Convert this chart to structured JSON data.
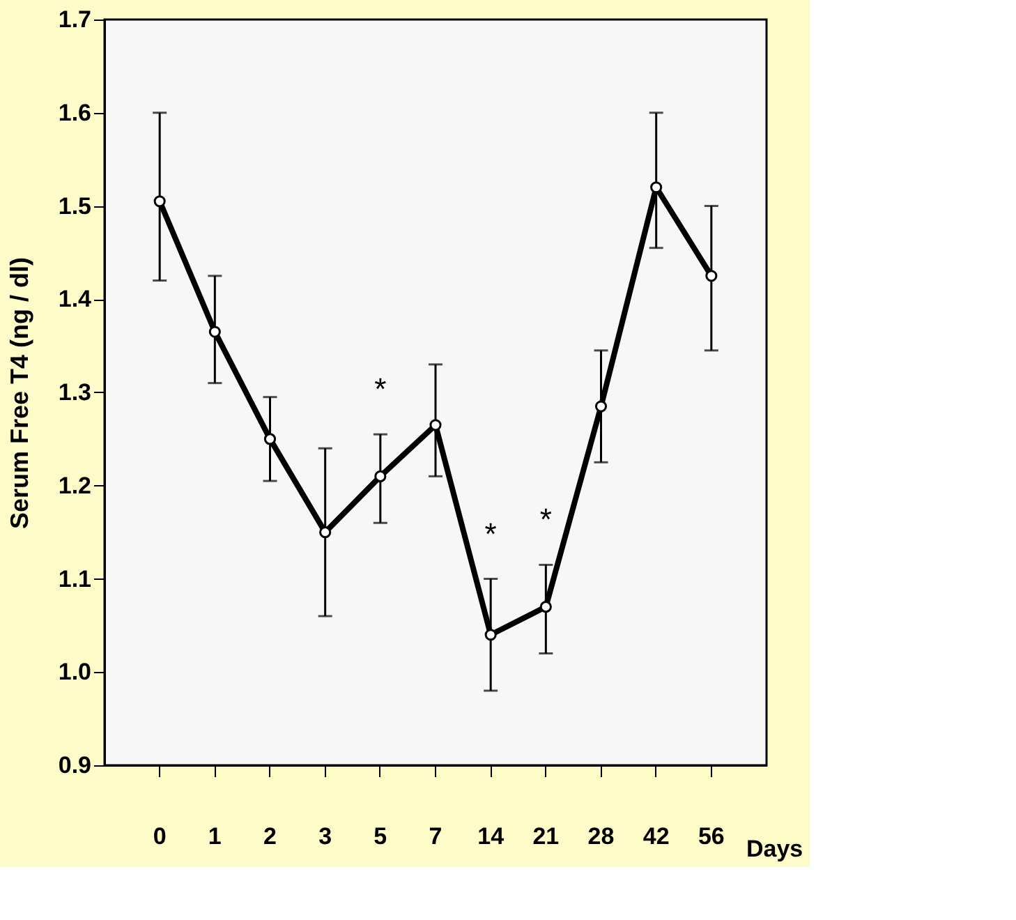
{
  "chart_data": {
    "type": "line",
    "ylabel": "Serum Free T4 (ng / dl)",
    "xlabel": "Days",
    "categories": [
      "0",
      "1",
      "2",
      "3",
      "5",
      "7",
      "14",
      "21",
      "28",
      "42",
      "56"
    ],
    "series": [
      {
        "color": "#000000",
        "values": [
          1.505,
          1.365,
          1.25,
          1.15,
          1.21,
          1.265,
          1.04,
          1.07,
          1.285,
          1.52,
          1.425
        ],
        "errors": [
          [
            1.42,
            1.6
          ],
          [
            1.31,
            1.425
          ],
          [
            1.205,
            1.295
          ],
          [
            1.06,
            1.24
          ],
          [
            1.16,
            1.255
          ],
          [
            1.21,
            1.33
          ],
          [
            0.98,
            1.1
          ],
          [
            1.02,
            1.115
          ],
          [
            1.225,
            1.345
          ],
          [
            1.455,
            1.6
          ],
          [
            1.345,
            1.5
          ]
        ]
      }
    ],
    "ylim": [
      0.9,
      1.7
    ],
    "yticks": [
      0.9,
      {
        "value": 1.0,
        "label": "1.0"
      },
      1.1,
      1.2,
      1.3,
      1.4,
      1.5,
      1.6,
      1.7
    ],
    "annotations": [
      {
        "text": "*",
        "x": "5",
        "y": 1.255
      },
      {
        "text": "*",
        "x": "14",
        "y": 1.1
      },
      {
        "text": "*",
        "x": "21",
        "y": 1.115
      }
    ],
    "marker": "circle",
    "line_style": "solid",
    "grid": false
  }
}
